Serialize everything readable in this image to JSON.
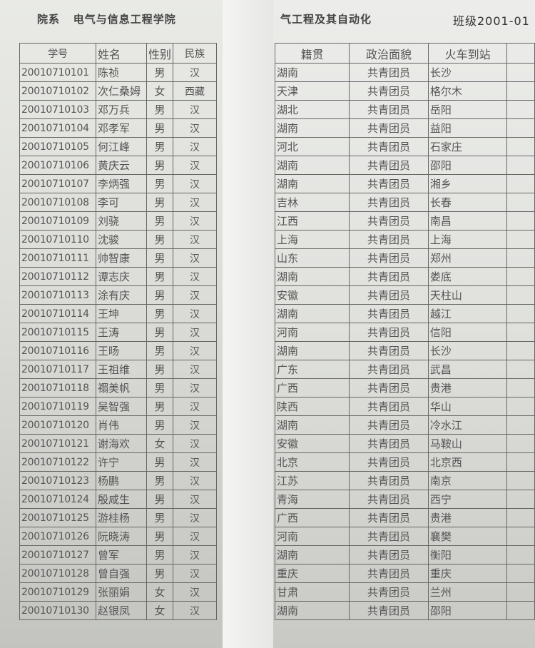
{
  "header": {
    "department_label": "院系",
    "department": "电气与信息工程学院",
    "major_partial": "气工程及其自动化",
    "class_label": "班级2001-01"
  },
  "columns": {
    "id": "学号",
    "name": "姓名",
    "sex": "性别",
    "ethnicity": "民族",
    "province": "籍贯",
    "political": "政治面貌",
    "station": "火车到站"
  },
  "rows": [
    [
      "20010710101",
      "陈祯",
      "男",
      "汉",
      "湖南",
      "共青团员",
      "长沙"
    ],
    [
      "20010710102",
      "次仁桑姆",
      "女",
      "西藏",
      "天津",
      "共青团员",
      "格尔木"
    ],
    [
      "20010710103",
      "邓万兵",
      "男",
      "汉",
      "湖北",
      "共青团员",
      "岳阳"
    ],
    [
      "20010710104",
      "邓孝军",
      "男",
      "汉",
      "湖南",
      "共青团员",
      "益阳"
    ],
    [
      "20010710105",
      "何江峰",
      "男",
      "汉",
      "河北",
      "共青团员",
      "石家庄"
    ],
    [
      "20010710106",
      "黄庆云",
      "男",
      "汉",
      "湖南",
      "共青团员",
      "邵阳"
    ],
    [
      "20010710107",
      "李炳强",
      "男",
      "汉",
      "湖南",
      "共青团员",
      "湘乡"
    ],
    [
      "20010710108",
      "李可",
      "男",
      "汉",
      "吉林",
      "共青团员",
      "长春"
    ],
    [
      "20010710109",
      "刘骁",
      "男",
      "汉",
      "江西",
      "共青团员",
      "南昌"
    ],
    [
      "20010710110",
      "沈骏",
      "男",
      "汉",
      "上海",
      "共青团员",
      "上海"
    ],
    [
      "20010710111",
      "帅智康",
      "男",
      "汉",
      "山东",
      "共青团员",
      "郑州"
    ],
    [
      "20010710112",
      "谭志庆",
      "男",
      "汉",
      "湖南",
      "共青团员",
      "娄底"
    ],
    [
      "20010710113",
      "涂有庆",
      "男",
      "汉",
      "安徽",
      "共青团员",
      "天柱山"
    ],
    [
      "20010710114",
      "王坤",
      "男",
      "汉",
      "湖南",
      "共青团员",
      "越江"
    ],
    [
      "20010710115",
      "王涛",
      "男",
      "汉",
      "河南",
      "共青团员",
      "信阳"
    ],
    [
      "20010710116",
      "王旸",
      "男",
      "汉",
      "湖南",
      "共青团员",
      "长沙"
    ],
    [
      "20010710117",
      "王祖维",
      "男",
      "汉",
      "广东",
      "共青团员",
      "武昌"
    ],
    [
      "20010710118",
      "禤美帆",
      "男",
      "汉",
      "广西",
      "共青团员",
      "贵港"
    ],
    [
      "20010710119",
      "吴智强",
      "男",
      "汉",
      "陕西",
      "共青团员",
      "华山"
    ],
    [
      "20010710120",
      "肖伟",
      "男",
      "汉",
      "湖南",
      "共青团员",
      "冷水江"
    ],
    [
      "20010710121",
      "谢海欢",
      "女",
      "汉",
      "安徽",
      "共青团员",
      "马鞍山"
    ],
    [
      "20010710122",
      "许宁",
      "男",
      "汉",
      "北京",
      "共青团员",
      "北京西"
    ],
    [
      "20010710123",
      "杨鹏",
      "男",
      "汉",
      "江苏",
      "共青团员",
      "南京"
    ],
    [
      "20010710124",
      "殷咸生",
      "男",
      "汉",
      "青海",
      "共青团员",
      "西宁"
    ],
    [
      "20010710125",
      "游桂杨",
      "男",
      "汉",
      "广西",
      "共青团员",
      "贵港"
    ],
    [
      "20010710126",
      "阮晓涛",
      "男",
      "汉",
      "河南",
      "共青团员",
      "襄樊"
    ],
    [
      "20010710127",
      "曾军",
      "男",
      "汉",
      "湖南",
      "共青团员",
      "衡阳"
    ],
    [
      "20010710128",
      "曾自强",
      "男",
      "汉",
      "重庆",
      "共青团员",
      "重庆"
    ],
    [
      "20010710129",
      "张丽娟",
      "女",
      "汉",
      "甘肃",
      "共青团员",
      "兰州"
    ],
    [
      "20010710130",
      "赵银凤",
      "女",
      "汉",
      "湖南",
      "共青团员",
      "邵阳"
    ]
  ]
}
